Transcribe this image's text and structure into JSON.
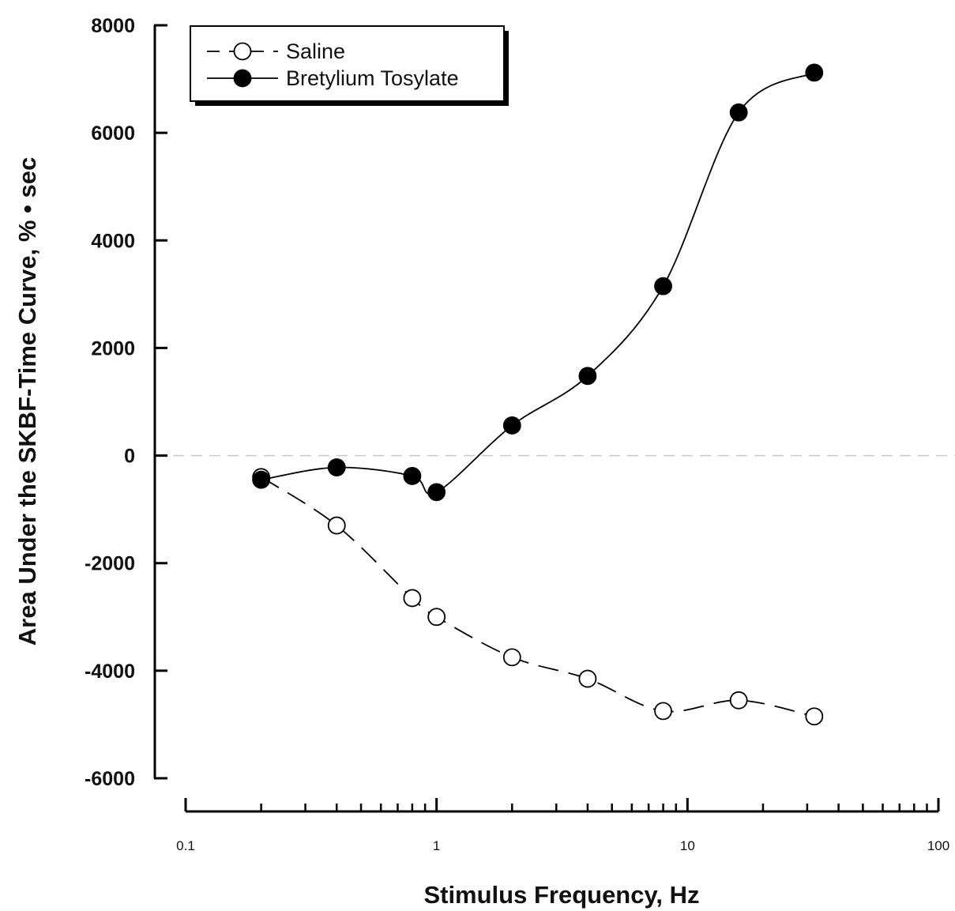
{
  "chart_data": {
    "type": "line",
    "xlabel": "Stimulus Frequency, Hz",
    "ylabel": "Area Under the SKBF-Time Curve, % • sec",
    "xscale": "log",
    "xlim": [
      0.1,
      100
    ],
    "ylim": [
      -6000,
      8000
    ],
    "x_ticks": [
      0.1,
      1,
      10,
      100
    ],
    "x_tick_labels": [
      "0.1",
      "1",
      "10",
      "100"
    ],
    "y_ticks": [
      -6000,
      -4000,
      -2000,
      0,
      2000,
      4000,
      6000,
      8000
    ],
    "y_tick_labels": [
      "-6000",
      "-4000",
      "-2000",
      "0",
      "2000",
      "4000",
      "6000",
      "8000"
    ],
    "zero_reference_line": true,
    "grid": false,
    "legend_position": "top-left",
    "series": [
      {
        "name": "Saline",
        "marker": "open-circle",
        "line_style": "dashed",
        "color": "#000000",
        "x": [
          0.2,
          0.4,
          0.8,
          1,
          2,
          4,
          8,
          16,
          32
        ],
        "y": [
          -400,
          -1300,
          -2650,
          -3000,
          -3750,
          -4150,
          -4750,
          -4550,
          -4850
        ]
      },
      {
        "name": "Bretylium Tosylate",
        "marker": "filled-circle",
        "line_style": "solid",
        "color": "#000000",
        "x": [
          0.2,
          0.4,
          0.8,
          1,
          2,
          4,
          8,
          16,
          32
        ],
        "y": [
          -450,
          -220,
          -380,
          -680,
          560,
          1480,
          3150,
          6380,
          7120
        ]
      }
    ]
  }
}
